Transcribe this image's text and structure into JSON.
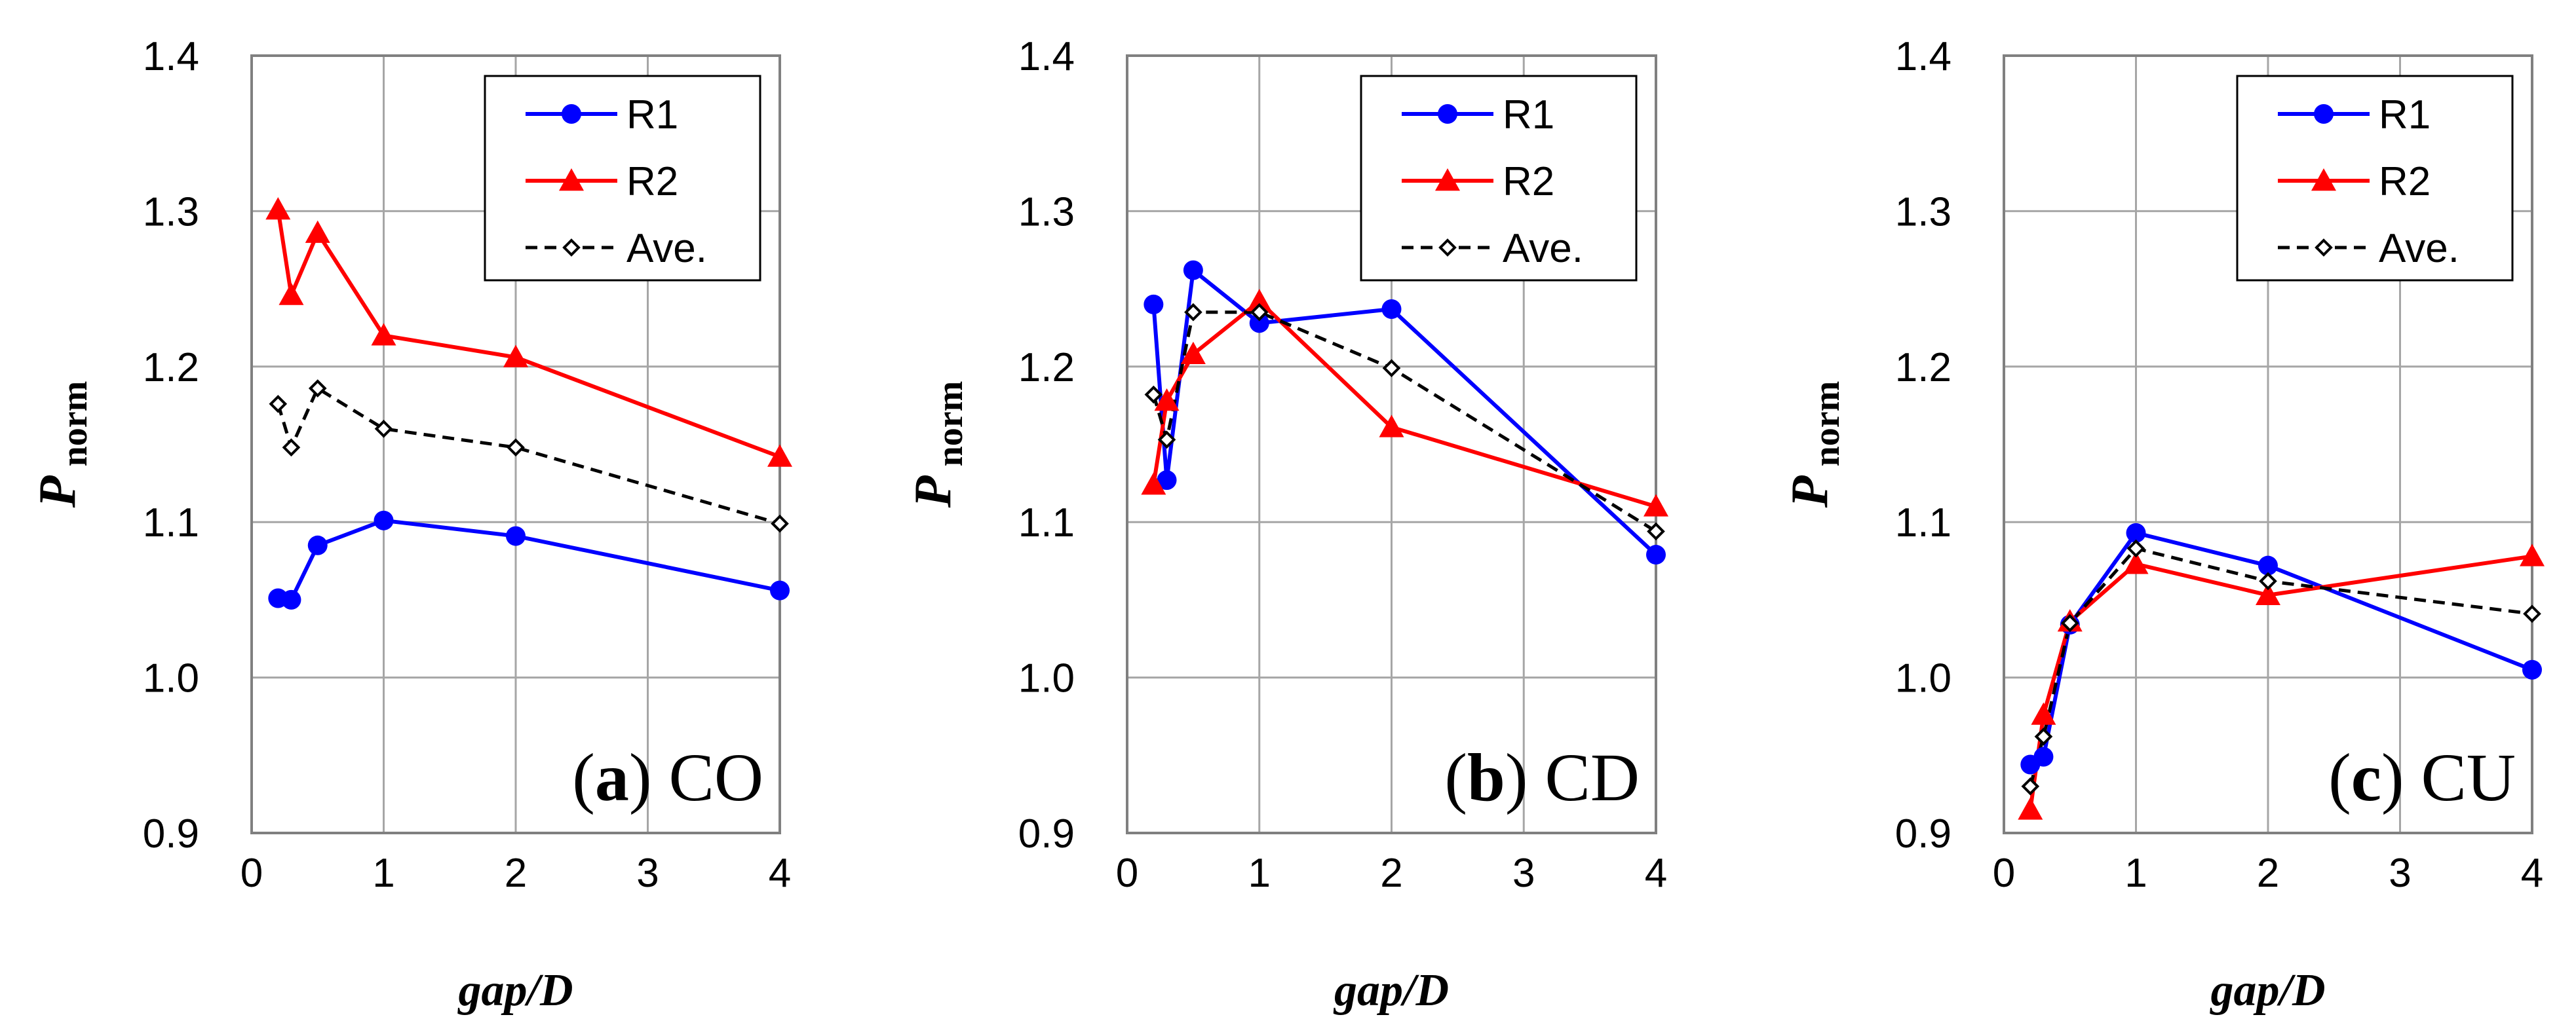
{
  "colors": {
    "r1": "#0000ff",
    "r2": "#ff0000",
    "ave": "#000000",
    "grid": "#a6a6a6",
    "frame": "#808080"
  },
  "chart_data": [
    {
      "type": "line",
      "panel_letter": "a",
      "panel_name": "CO",
      "xlabel": "gap/D",
      "ylabel_main": "P",
      "ylabel_sub": "norm",
      "xlim": [
        0,
        4
      ],
      "ylim": [
        0.9,
        1.4
      ],
      "x_ticks": [
        "0",
        "1",
        "2",
        "3",
        "4"
      ],
      "y_ticks": [
        "0.9",
        "1.0",
        "1.1",
        "1.2",
        "1.3",
        "1.4"
      ],
      "legend_position": "top-right",
      "x": [
        0.2,
        0.3,
        0.5,
        1,
        2,
        4
      ],
      "series": [
        {
          "name": "R1",
          "marker": "circle",
          "dashed": false,
          "values": [
            1.051,
            1.05,
            1.085,
            1.101,
            1.091,
            1.056
          ]
        },
        {
          "name": "R2",
          "marker": "triangle",
          "dashed": false,
          "values": [
            1.301,
            1.246,
            1.286,
            1.22,
            1.206,
            1.142
          ]
        },
        {
          "name": "Ave.",
          "marker": "diamond",
          "dashed": true,
          "values": [
            1.176,
            1.148,
            1.186,
            1.16,
            1.148,
            1.099
          ]
        }
      ]
    },
    {
      "type": "line",
      "panel_letter": "b",
      "panel_name": "CD",
      "xlabel": "gap/D",
      "ylabel_main": "P",
      "ylabel_sub": "norm",
      "xlim": [
        0,
        4
      ],
      "ylim": [
        0.9,
        1.4
      ],
      "x_ticks": [
        "0",
        "1",
        "2",
        "3",
        "4"
      ],
      "y_ticks": [
        "0.9",
        "1.0",
        "1.1",
        "1.2",
        "1.3",
        "1.4"
      ],
      "legend_position": "top-right",
      "x": [
        0.2,
        0.3,
        0.5,
        1,
        2,
        4
      ],
      "series": [
        {
          "name": "R1",
          "marker": "circle",
          "dashed": false,
          "values": [
            1.24,
            1.127,
            1.262,
            1.228,
            1.237,
            1.079
          ]
        },
        {
          "name": "R2",
          "marker": "triangle",
          "dashed": false,
          "values": [
            1.124,
            1.178,
            1.208,
            1.242,
            1.161,
            1.11
          ]
        },
        {
          "name": "Ave.",
          "marker": "diamond",
          "dashed": true,
          "values": [
            1.182,
            1.153,
            1.235,
            1.235,
            1.199,
            1.094
          ]
        }
      ]
    },
    {
      "type": "line",
      "panel_letter": "c",
      "panel_name": "CU",
      "xlabel": "gap/D",
      "ylabel_main": "P",
      "ylabel_sub": "norm",
      "xlim": [
        0,
        4
      ],
      "ylim": [
        0.9,
        1.4
      ],
      "x_ticks": [
        "0",
        "1",
        "2",
        "3",
        "4"
      ],
      "y_ticks": [
        "0.9",
        "1.0",
        "1.1",
        "1.2",
        "1.3",
        "1.4"
      ],
      "legend_position": "top-right",
      "x": [
        0.2,
        0.3,
        0.5,
        1,
        2,
        4
      ],
      "series": [
        {
          "name": "R1",
          "marker": "circle",
          "dashed": false,
          "values": [
            0.944,
            0.949,
            1.034,
            1.093,
            1.072,
            1.005
          ]
        },
        {
          "name": "R2",
          "marker": "triangle",
          "dashed": false,
          "values": [
            0.915,
            0.976,
            1.036,
            1.073,
            1.053,
            1.078
          ]
        },
        {
          "name": "Ave.",
          "marker": "diamond",
          "dashed": true,
          "values": [
            0.93,
            0.962,
            1.035,
            1.083,
            1.062,
            1.041
          ]
        }
      ]
    }
  ]
}
